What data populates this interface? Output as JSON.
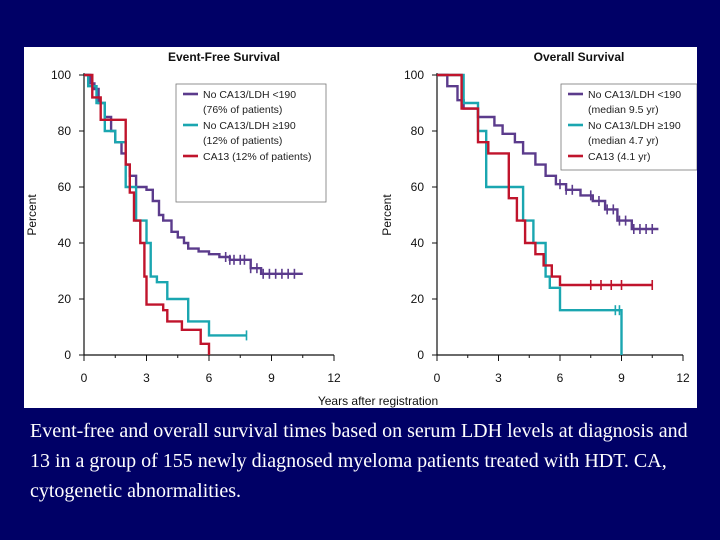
{
  "caption": "Event-free and overall survival times based on serum LDH levels at diagnosis and 13 in a group of 155 newly diagnosed myeloma patients treated with HDT. CA, cytogenetic abnormalities.",
  "colors": {
    "page_bg": "#000066",
    "panel_bg": "#ffffff",
    "purple": "#5b3b8c",
    "cyan": "#1aa6b0",
    "red": "#c0142c",
    "axis": "#111111"
  },
  "chart_data": [
    {
      "type": "line",
      "title": "Event-Free Survival",
      "xlabel": "Years after registration",
      "ylabel": "Percent",
      "xlim": [
        0,
        12
      ],
      "ylim": [
        0,
        100
      ],
      "xticks": [
        "0",
        "3",
        "6",
        "9",
        "12"
      ],
      "yticks": [
        "0",
        "20",
        "40",
        "60",
        "80",
        "100"
      ],
      "legend": [
        {
          "color": "purple",
          "lines": [
            "No CA13/LDH <190",
            "(76% of patients)"
          ]
        },
        {
          "color": "cyan",
          "lines": [
            "No CA13/LDH ≥190",
            "(12% of patients)"
          ]
        },
        {
          "color": "red",
          "lines": [
            "CA13 (12% of patients)"
          ]
        }
      ],
      "series": [
        {
          "name": "No CA13/LDH <190",
          "color": "purple",
          "x": [
            0,
            0.3,
            0.5,
            0.7,
            1.0,
            1.3,
            1.5,
            1.8,
            2.0,
            2.2,
            2.5,
            3.0,
            3.3,
            3.6,
            3.8,
            4.2,
            4.5,
            4.8,
            5.0,
            5.5,
            6.0,
            6.5,
            7.0,
            8.0,
            8.5,
            10.5
          ],
          "y": [
            100,
            97,
            95,
            90,
            85,
            80,
            76,
            72,
            68,
            64,
            60,
            59,
            55,
            50,
            48,
            44,
            42,
            40,
            38,
            37,
            36,
            35,
            34,
            31,
            29,
            29
          ],
          "censor_x": [
            6.8,
            7.0,
            7.2,
            7.5,
            7.7,
            8.0,
            8.3,
            8.6,
            8.9,
            9.2,
            9.5,
            9.8,
            10.1
          ]
        },
        {
          "name": "No CA13/LDH ≥190",
          "color": "cyan",
          "x": [
            0,
            0.2,
            0.6,
            1.0,
            1.5,
            2.0,
            2.5,
            3.0,
            3.2,
            3.5,
            4.0,
            5.0,
            6.0,
            7.8
          ],
          "y": [
            100,
            96,
            90,
            80,
            76,
            60,
            48,
            40,
            28,
            26,
            20,
            12,
            7,
            7
          ],
          "censor_x": [
            7.8
          ]
        },
        {
          "name": "CA13 (12% of patients)",
          "color": "red",
          "x": [
            0,
            0.4,
            0.8,
            2.0,
            2.2,
            2.4,
            2.7,
            2.9,
            3.0,
            3.5,
            3.8,
            4.0,
            4.7,
            5.6,
            6.0
          ],
          "y": [
            100,
            92,
            84,
            68,
            58,
            48,
            40,
            28,
            18,
            18,
            16,
            12,
            9,
            4,
            0
          ],
          "censor_x": []
        }
      ]
    },
    {
      "type": "line",
      "title": "Overall Survival",
      "xlabel": "Years after registration",
      "ylabel": "Percent",
      "xlim": [
        0,
        12
      ],
      "ylim": [
        0,
        100
      ],
      "xticks": [
        "0",
        "3",
        "6",
        "9",
        "12"
      ],
      "yticks": [
        "0",
        "20",
        "40",
        "60",
        "80",
        "100"
      ],
      "legend": [
        {
          "color": "purple",
          "lines": [
            "No CA13/LDH <190",
            "(median 9.5 yr)"
          ]
        },
        {
          "color": "cyan",
          "lines": [
            "No CA13/LDH ≥190",
            "(median 4.7 yr)"
          ]
        },
        {
          "color": "red",
          "lines": [
            "CA13 (4.1 yr)"
          ]
        }
      ],
      "series": [
        {
          "name": "No CA13/LDH <190",
          "color": "purple",
          "x": [
            0,
            0.5,
            1.0,
            1.3,
            2.0,
            2.8,
            3.2,
            3.8,
            4.2,
            4.8,
            5.3,
            5.8,
            6.3,
            7.0,
            7.6,
            8.2,
            8.8,
            9.5,
            10.8
          ],
          "y": [
            100,
            96,
            91,
            88,
            85,
            82,
            79,
            76,
            72,
            68,
            64,
            61,
            59,
            57,
            55,
            52,
            48,
            45,
            45
          ],
          "censor_x": [
            6.0,
            6.3,
            6.6,
            7.5,
            7.9,
            8.3,
            8.6,
            8.9,
            9.2,
            9.6,
            9.9,
            10.2,
            10.5
          ]
        },
        {
          "name": "No CA13/LDH ≥190",
          "color": "cyan",
          "x": [
            0,
            1.3,
            2.0,
            2.4,
            3.5,
            4.2,
            4.7,
            5.3,
            5.5,
            6.0,
            7.0,
            8.8,
            9.0
          ],
          "y": [
            100,
            90,
            80,
            60,
            60,
            48,
            40,
            28,
            24,
            16,
            16,
            16,
            0
          ],
          "censor_x": [
            8.7,
            8.9
          ]
        },
        {
          "name": "CA13 (4.1 yr)",
          "color": "red",
          "x": [
            0,
            1.2,
            2.0,
            2.5,
            3.5,
            3.9,
            4.3,
            4.8,
            5.2,
            5.6,
            6.0,
            10.5
          ],
          "y": [
            100,
            88,
            76,
            72,
            56,
            48,
            40,
            36,
            32,
            28,
            25,
            25
          ],
          "censor_x": [
            7.5,
            8.0,
            8.5,
            9.0,
            10.5
          ]
        }
      ]
    }
  ]
}
